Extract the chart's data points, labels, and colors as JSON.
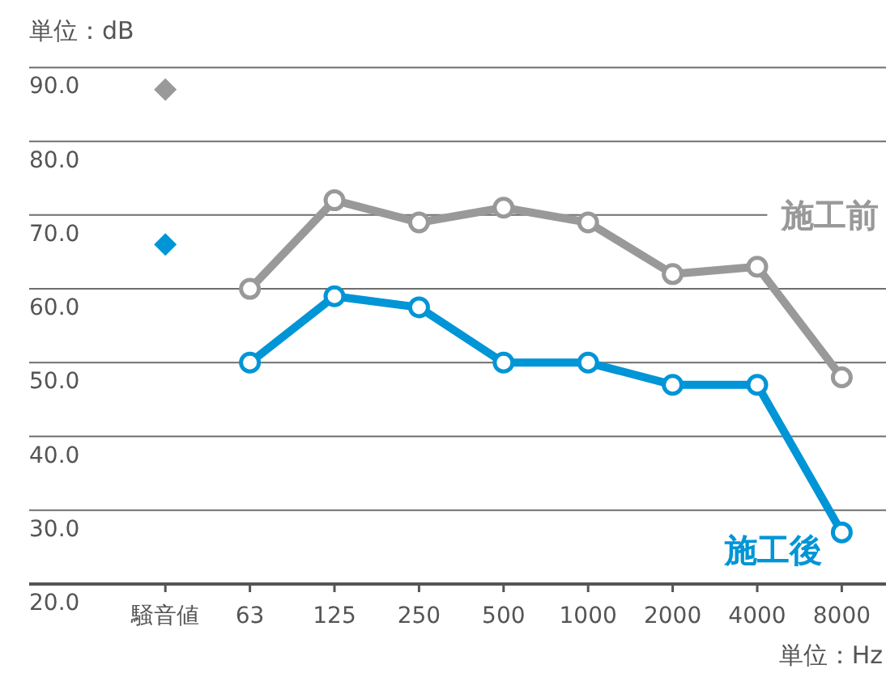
{
  "chart_data": {
    "type": "line",
    "categories": [
      "騒音値",
      "63",
      "125",
      "250",
      "500",
      "1000",
      "2000",
      "4000",
      "8000"
    ],
    "ylim": [
      20,
      90
    ],
    "yticks": [
      {
        "value": 20,
        "label": "20.0"
      },
      {
        "value": 30,
        "label": "30.0"
      },
      {
        "value": 40,
        "label": "40.0"
      },
      {
        "value": 50,
        "label": "50.0"
      },
      {
        "value": 60,
        "label": "60.0"
      },
      {
        "value": 70,
        "label": "70.0"
      },
      {
        "value": 80,
        "label": "80.0"
      },
      {
        "value": 90,
        "label": "90.0"
      }
    ],
    "grid": "y",
    "marker": "circle",
    "annotations": [
      "単位：dB",
      "単位：Hz"
    ],
    "series": [
      {
        "name": "施工前",
        "color": "#999999",
        "values": [
          null,
          60,
          72,
          69,
          71,
          69,
          62,
          63,
          48
        ]
      },
      {
        "name": "施工後",
        "color": "#0095d6",
        "values": [
          null,
          50,
          59,
          57.5,
          50,
          50,
          47,
          47,
          27
        ]
      },
      {
        "type": "scatter",
        "marker": "diamond",
        "color": "#999999",
        "values": [
          87,
          null,
          null,
          null,
          null,
          null,
          null,
          null,
          null
        ]
      },
      {
        "type": "scatter",
        "marker": "diamond",
        "color": "#0095d6",
        "values": [
          66,
          null,
          null,
          null,
          null,
          null,
          null,
          null,
          null
        ]
      }
    ]
  }
}
